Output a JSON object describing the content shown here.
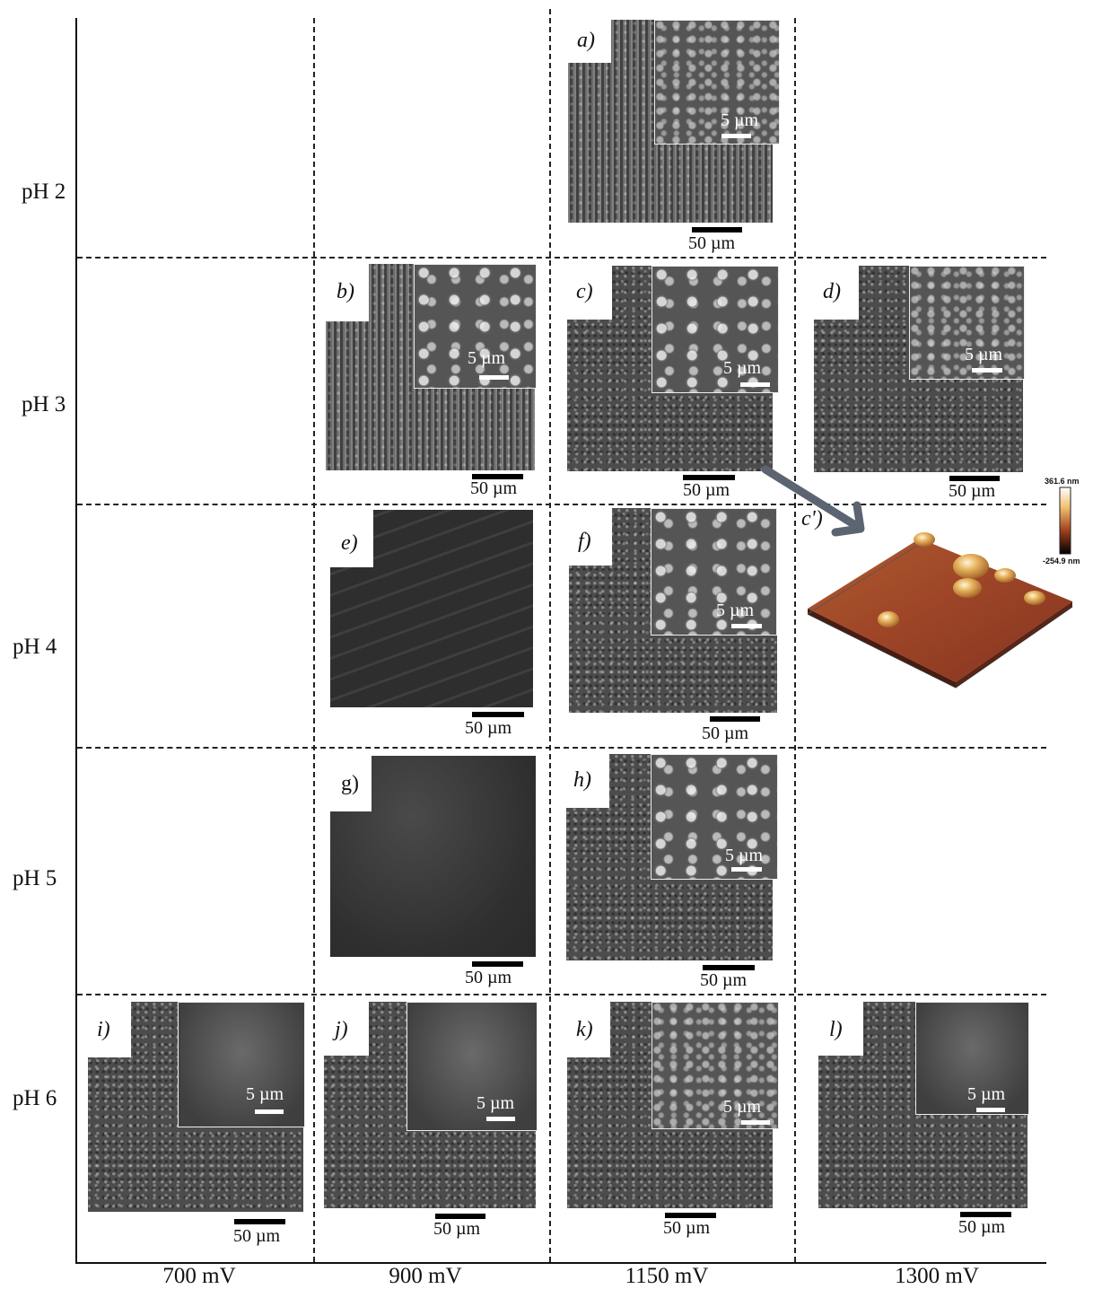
{
  "rows": [
    "pH 2",
    "pH 3",
    "pH 4",
    "pH 5",
    "pH 6"
  ],
  "columns": [
    "700 mV",
    "900 mV",
    "1150 mV",
    "1300 mV"
  ],
  "panel_letters": {
    "a": "a)",
    "b": "b)",
    "c": "c)",
    "d": "d)",
    "e": "e)",
    "f": "f)",
    "g": "g)",
    "h": "h)",
    "i": "i)",
    "j": "j)",
    "k": "k)",
    "l": "l)",
    "c_prime": "c')"
  },
  "scale": {
    "main": "50 µm",
    "inset": "5 µm"
  },
  "afm_colorbar": {
    "max": "361.6 nm",
    "min": "-254.9 nm"
  }
}
